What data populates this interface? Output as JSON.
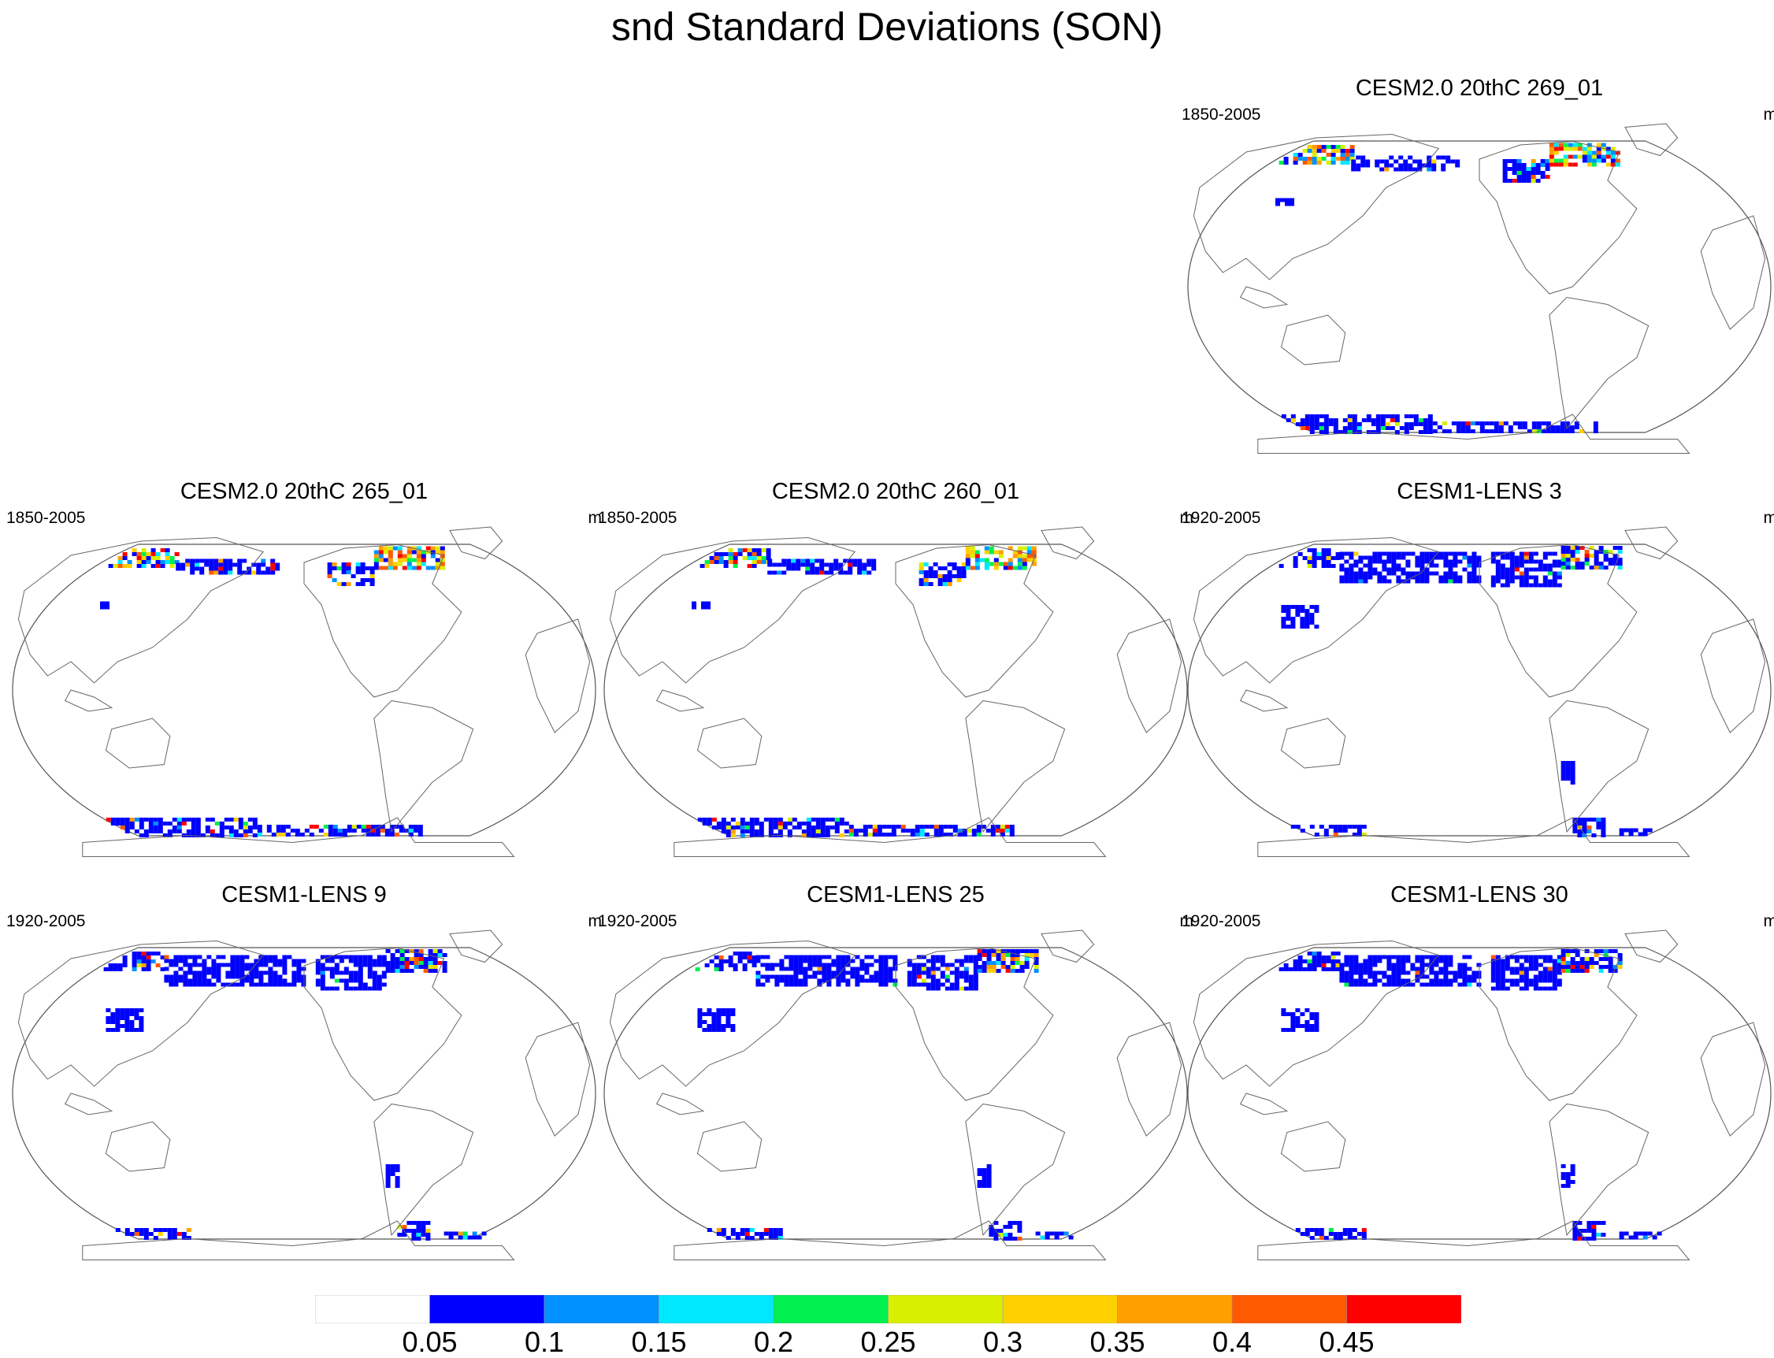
{
  "title": "snd Standard Deviations (SON)",
  "panels": [
    {
      "title": "CESM2.0 20thC 269_01",
      "period": "1850-2005",
      "units": "m",
      "intensity": "high"
    },
    {
      "title": "CESM2.0 20thC 265_01",
      "period": "1850-2005",
      "units": "m",
      "intensity": "high"
    },
    {
      "title": "CESM2.0 20thC 260_01",
      "period": "1850-2005",
      "units": "m",
      "intensity": "high"
    },
    {
      "title": "CESM1-LENS 3",
      "period": "1920-2005",
      "units": "m",
      "intensity": "low"
    },
    {
      "title": "CESM1-LENS 9",
      "period": "1920-2005",
      "units": "m",
      "intensity": "low"
    },
    {
      "title": "CESM1-LENS 25",
      "period": "1920-2005",
      "units": "m",
      "intensity": "low"
    },
    {
      "title": "CESM1-LENS 30",
      "period": "1920-2005",
      "units": "m",
      "intensity": "low"
    }
  ],
  "colorbar": {
    "labels": [
      "0.05",
      "0.1",
      "0.15",
      "0.2",
      "0.25",
      "0.3",
      "0.35",
      "0.4",
      "0.45"
    ],
    "colors": [
      "#ffffff",
      "#0000ff",
      "#0090ff",
      "#00e8ff",
      "#00f050",
      "#d8f000",
      "#ffd000",
      "#ffa000",
      "#ff5a00",
      "#ff0000"
    ]
  }
}
